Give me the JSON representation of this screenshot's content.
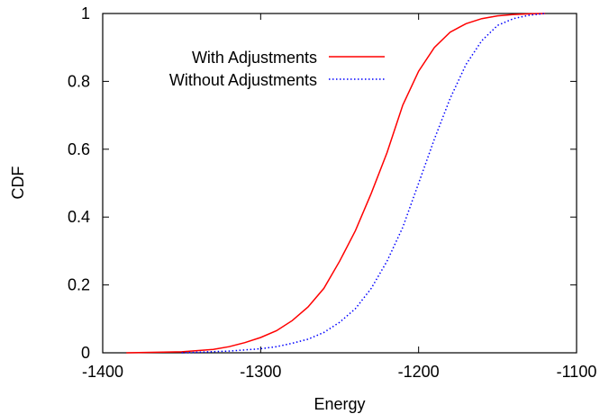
{
  "chart_data": {
    "type": "line",
    "title": "",
    "xlabel": "Energy",
    "ylabel": "CDF",
    "xlim": [
      -1400,
      -1100
    ],
    "ylim": [
      0,
      1
    ],
    "x_ticks": [
      "-1400",
      "-1300",
      "-1200",
      "-1100"
    ],
    "y_ticks": [
      "0",
      "0.2",
      "0.4",
      "0.6",
      "0.8",
      "1"
    ],
    "grid": false,
    "legend_position": "top-left",
    "series": [
      {
        "name": "With Adjustments",
        "color": "#ff0000",
        "style": "solid",
        "x": [
          -1385,
          -1350,
          -1330,
          -1320,
          -1310,
          -1300,
          -1290,
          -1280,
          -1270,
          -1260,
          -1250,
          -1240,
          -1230,
          -1220,
          -1210,
          -1200,
          -1190,
          -1180,
          -1170,
          -1160,
          -1150,
          -1140,
          -1130,
          -1120
        ],
        "y": [
          0,
          0.003,
          0.01,
          0.018,
          0.03,
          0.045,
          0.065,
          0.095,
          0.135,
          0.19,
          0.27,
          0.36,
          0.47,
          0.59,
          0.73,
          0.83,
          0.9,
          0.945,
          0.97,
          0.985,
          0.993,
          0.997,
          0.999,
          1
        ]
      },
      {
        "name": "Without Adjustments",
        "color": "#0000ff",
        "style": "dotted",
        "x": [
          -1350,
          -1320,
          -1300,
          -1290,
          -1280,
          -1270,
          -1260,
          -1250,
          -1240,
          -1230,
          -1220,
          -1210,
          -1200,
          -1190,
          -1180,
          -1170,
          -1160,
          -1150,
          -1140,
          -1130,
          -1120
        ],
        "y": [
          0,
          0.005,
          0.012,
          0.018,
          0.028,
          0.04,
          0.06,
          0.09,
          0.13,
          0.19,
          0.27,
          0.37,
          0.5,
          0.63,
          0.75,
          0.85,
          0.92,
          0.965,
          0.985,
          0.995,
          1
        ]
      }
    ]
  }
}
